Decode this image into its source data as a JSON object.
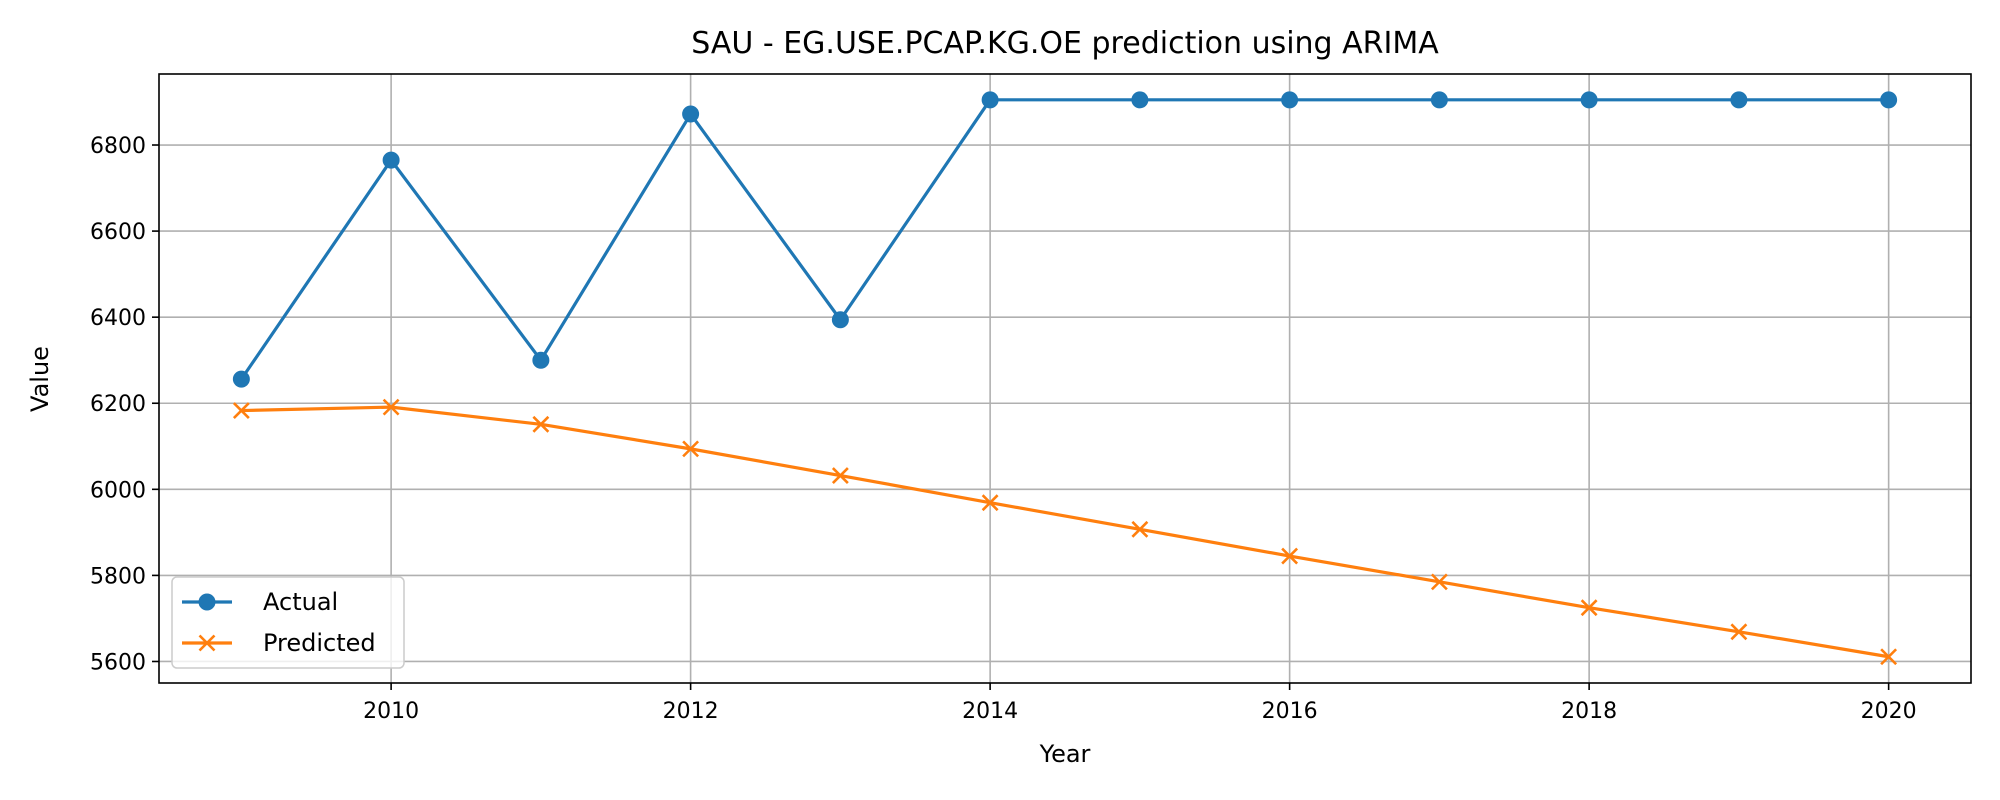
{
  "chart_data": {
    "type": "line",
    "title": "SAU - EG.USE.PCAP.KG.OE prediction using ARIMA",
    "xlabel": "Year",
    "ylabel": "Value",
    "x": [
      2009,
      2010,
      2011,
      2012,
      2013,
      2014,
      2015,
      2016,
      2017,
      2018,
      2019,
      2020
    ],
    "xlim": [
      2008.45,
      2020.55
    ],
    "ylim": [
      5550,
      6965
    ],
    "x_ticks": [
      2010,
      2012,
      2014,
      2016,
      2018,
      2020
    ],
    "y_ticks": [
      5600,
      5800,
      6000,
      6200,
      6400,
      6600,
      6800
    ],
    "grid": true,
    "legend_position": "lower-left",
    "series": [
      {
        "name": "Actual",
        "color": "#1f77b4",
        "marker": "circle",
        "values": [
          6256,
          6765,
          6300,
          6872,
          6394,
          6905,
          6905,
          6905,
          6905,
          6905,
          6905,
          6905
        ]
      },
      {
        "name": "Predicted",
        "color": "#ff7f0e",
        "marker": "x",
        "values": [
          6183,
          6191,
          6151,
          6094,
          6032,
          5969,
          5907,
          5845,
          5785,
          5725,
          5669,
          5611
        ]
      }
    ]
  }
}
